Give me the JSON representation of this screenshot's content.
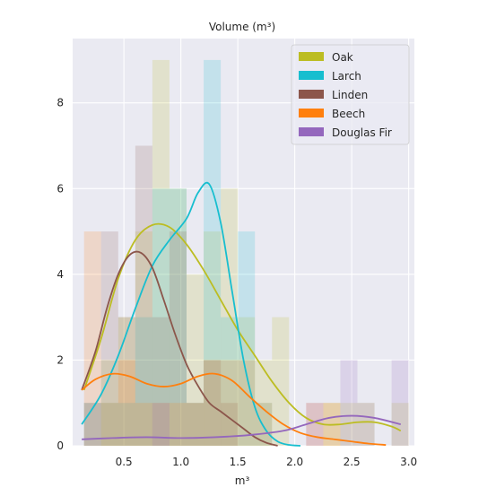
{
  "chart_data": {
    "type": "histogram_kde",
    "title": "Volume (m³)",
    "xlabel": "m³",
    "ylabel": "",
    "xlim": [
      0.05,
      3.05
    ],
    "ylim": [
      0,
      9.5
    ],
    "xticks": [
      0.5,
      1.0,
      1.5,
      2.0,
      2.5,
      3.0
    ],
    "xtick_labels": [
      "0.5",
      "1.0",
      "1.5",
      "2.0",
      "2.5",
      "3.0"
    ],
    "yticks": [
      0,
      2,
      4,
      6,
      8
    ],
    "ytick_labels": [
      "0",
      "2",
      "4",
      "6",
      "8"
    ],
    "grid": true,
    "background": "#eaeaf2",
    "legend_position": "top-right",
    "bin_width": 0.15,
    "series": [
      {
        "name": "Oak",
        "color": "#bcbd22",
        "bins": [
          {
            "start": 0.15,
            "count": 1
          },
          {
            "start": 0.3,
            "count": 2
          },
          {
            "start": 0.45,
            "count": 3
          },
          {
            "start": 0.6,
            "count": 5
          },
          {
            "start": 0.75,
            "count": 9
          },
          {
            "start": 0.9,
            "count": 6
          },
          {
            "start": 1.05,
            "count": 4
          },
          {
            "start": 1.2,
            "count": 5
          },
          {
            "start": 1.35,
            "count": 6
          },
          {
            "start": 1.5,
            "count": 3
          },
          {
            "start": 1.65,
            "count": 2
          },
          {
            "start": 1.8,
            "count": 3
          },
          {
            "start": 1.95,
            "count": 0
          },
          {
            "start": 2.1,
            "count": 0
          },
          {
            "start": 2.25,
            "count": 1
          },
          {
            "start": 2.4,
            "count": 1
          },
          {
            "start": 2.55,
            "count": 1
          },
          {
            "start": 2.7,
            "count": 0
          },
          {
            "start": 2.85,
            "count": 1
          }
        ],
        "kde": [
          [
            0.15,
            1.3
          ],
          [
            0.3,
            2.5
          ],
          [
            0.45,
            3.9
          ],
          [
            0.6,
            4.8
          ],
          [
            0.75,
            5.15
          ],
          [
            0.9,
            5.1
          ],
          [
            1.05,
            4.7
          ],
          [
            1.2,
            4.1
          ],
          [
            1.35,
            3.4
          ],
          [
            1.5,
            2.7
          ],
          [
            1.65,
            2.1
          ],
          [
            1.8,
            1.5
          ],
          [
            1.95,
            1.0
          ],
          [
            2.1,
            0.65
          ],
          [
            2.25,
            0.5
          ],
          [
            2.4,
            0.5
          ],
          [
            2.55,
            0.55
          ],
          [
            2.7,
            0.55
          ],
          [
            2.85,
            0.45
          ],
          [
            2.93,
            0.35
          ]
        ]
      },
      {
        "name": "Larch",
        "color": "#17becf",
        "bins": [
          {
            "start": 0.15,
            "count": 1
          },
          {
            "start": 0.3,
            "count": 1
          },
          {
            "start": 0.45,
            "count": 1
          },
          {
            "start": 0.6,
            "count": 3
          },
          {
            "start": 0.75,
            "count": 6
          },
          {
            "start": 0.9,
            "count": 6
          },
          {
            "start": 1.05,
            "count": 1
          },
          {
            "start": 1.2,
            "count": 9
          },
          {
            "start": 1.35,
            "count": 3
          },
          {
            "start": 1.5,
            "count": 5
          },
          {
            "start": 1.65,
            "count": 1
          }
        ],
        "kde": [
          [
            0.13,
            0.5
          ],
          [
            0.3,
            1.2
          ],
          [
            0.45,
            2.1
          ],
          [
            0.6,
            3.2
          ],
          [
            0.75,
            4.2
          ],
          [
            0.9,
            4.8
          ],
          [
            1.05,
            5.3
          ],
          [
            1.15,
            5.9
          ],
          [
            1.25,
            6.1
          ],
          [
            1.35,
            5.2
          ],
          [
            1.45,
            3.6
          ],
          [
            1.55,
            2.0
          ],
          [
            1.65,
            0.9
          ],
          [
            1.75,
            0.35
          ],
          [
            1.85,
            0.1
          ],
          [
            1.95,
            0.02
          ],
          [
            2.05,
            0.0
          ]
        ]
      },
      {
        "name": "Linden",
        "color": "#8c564b",
        "bins": [
          {
            "start": 0.3,
            "count": 5
          },
          {
            "start": 0.45,
            "count": 3
          },
          {
            "start": 0.6,
            "count": 7
          },
          {
            "start": 0.75,
            "count": 3
          },
          {
            "start": 0.9,
            "count": 5
          },
          {
            "start": 1.05,
            "count": 1
          },
          {
            "start": 1.2,
            "count": 2
          },
          {
            "start": 1.35,
            "count": 1
          },
          {
            "start": 1.5,
            "count": 0
          }
        ],
        "kde": [
          [
            0.13,
            1.3
          ],
          [
            0.25,
            2.2
          ],
          [
            0.35,
            3.2
          ],
          [
            0.45,
            4.0
          ],
          [
            0.55,
            4.45
          ],
          [
            0.65,
            4.5
          ],
          [
            0.75,
            4.15
          ],
          [
            0.85,
            3.4
          ],
          [
            0.95,
            2.6
          ],
          [
            1.05,
            1.9
          ],
          [
            1.15,
            1.4
          ],
          [
            1.25,
            1.0
          ],
          [
            1.35,
            0.8
          ],
          [
            1.45,
            0.6
          ],
          [
            1.55,
            0.4
          ],
          [
            1.65,
            0.2
          ],
          [
            1.75,
            0.07
          ],
          [
            1.85,
            0.0
          ]
        ]
      },
      {
        "name": "Beech",
        "color": "#ff7f0e",
        "bins": [
          {
            "start": 0.15,
            "count": 5
          },
          {
            "start": 0.3,
            "count": 1
          },
          {
            "start": 0.45,
            "count": 2
          },
          {
            "start": 0.6,
            "count": 1
          },
          {
            "start": 0.75,
            "count": 1
          },
          {
            "start": 0.9,
            "count": 1
          },
          {
            "start": 1.05,
            "count": 1
          },
          {
            "start": 1.2,
            "count": 2
          },
          {
            "start": 1.35,
            "count": 2
          },
          {
            "start": 1.5,
            "count": 2
          },
          {
            "start": 1.65,
            "count": 1
          },
          {
            "start": 1.8,
            "count": 0
          },
          {
            "start": 1.95,
            "count": 0
          },
          {
            "start": 2.1,
            "count": 1
          },
          {
            "start": 2.25,
            "count": 1
          }
        ],
        "kde": [
          [
            0.13,
            1.3
          ],
          [
            0.25,
            1.55
          ],
          [
            0.4,
            1.68
          ],
          [
            0.55,
            1.62
          ],
          [
            0.7,
            1.45
          ],
          [
            0.85,
            1.38
          ],
          [
            1.0,
            1.45
          ],
          [
            1.15,
            1.62
          ],
          [
            1.3,
            1.68
          ],
          [
            1.45,
            1.52
          ],
          [
            1.6,
            1.15
          ],
          [
            1.75,
            0.8
          ],
          [
            1.9,
            0.5
          ],
          [
            2.05,
            0.3
          ],
          [
            2.2,
            0.2
          ],
          [
            2.35,
            0.15
          ],
          [
            2.5,
            0.1
          ],
          [
            2.65,
            0.05
          ],
          [
            2.8,
            0.02
          ]
        ]
      },
      {
        "name": "Douglas Fir",
        "color": "#9467bd",
        "bins": [
          {
            "start": 0.15,
            "count": 1
          },
          {
            "start": 0.75,
            "count": 1
          },
          {
            "start": 2.1,
            "count": 1
          },
          {
            "start": 2.4,
            "count": 2
          },
          {
            "start": 2.55,
            "count": 1
          },
          {
            "start": 2.85,
            "count": 2
          }
        ],
        "kde": [
          [
            0.13,
            0.15
          ],
          [
            0.4,
            0.18
          ],
          [
            0.7,
            0.2
          ],
          [
            1.0,
            0.18
          ],
          [
            1.3,
            0.2
          ],
          [
            1.6,
            0.25
          ],
          [
            1.9,
            0.35
          ],
          [
            2.1,
            0.5
          ],
          [
            2.3,
            0.65
          ],
          [
            2.5,
            0.7
          ],
          [
            2.7,
            0.65
          ],
          [
            2.93,
            0.5
          ]
        ]
      }
    ]
  }
}
